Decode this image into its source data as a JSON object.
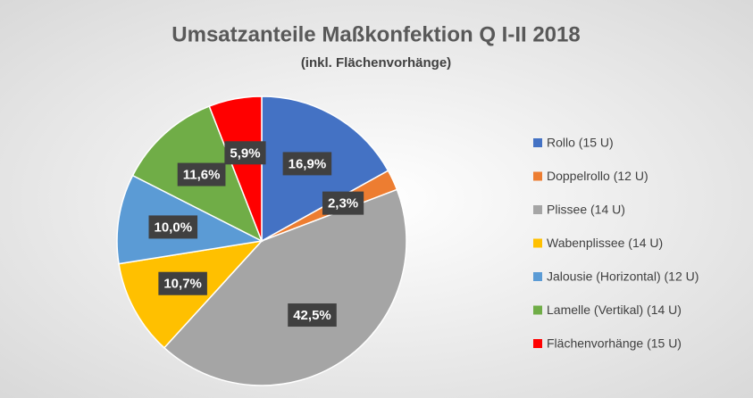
{
  "chart_data": {
    "type": "pie",
    "title": "Umsatzanteile Maßkonfektion Q I-II 2018",
    "subtitle": "(inkl. Flächenvorhänge)",
    "categories": [
      "Rollo (15 U)",
      "Doppelrollo (12 U)",
      "Plissee (14 U)",
      "Wabenplissee (14 U)",
      "Jalousie (Horizontal) (12 U)",
      "Lamelle (Vertikal) (14 U)",
      "Flächenvorhänge (15 U)"
    ],
    "values": [
      16.9,
      2.3,
      42.5,
      10.7,
      10.0,
      11.6,
      5.9
    ],
    "value_labels": [
      "16,9%",
      "2,3%",
      "42,5%",
      "10,7%",
      "10,0%",
      "11,6%",
      "5,9%"
    ],
    "colors": [
      "#4472c4",
      "#ed7d31",
      "#a5a5a5",
      "#ffc000",
      "#5b9bd5",
      "#70ad47",
      "#ff0000"
    ],
    "legend": "right"
  }
}
